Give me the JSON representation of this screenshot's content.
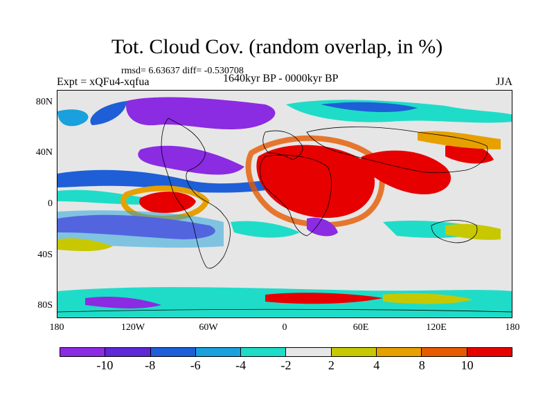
{
  "title": "Tot. Cloud Cov. (random overlap, in %)",
  "stats": "rmsd= 6.63637 diff= -0.530708",
  "expt": "Expt = xQFu4-xqfua",
  "period": "1640kyr BP - 0000kyr BP",
  "season": "JJA",
  "map": {
    "lat_labels": [
      "80N",
      "40N",
      "0",
      "40S",
      "80S"
    ],
    "lon_labels": [
      "180",
      "120W",
      "60W",
      "0",
      "60E",
      "120E",
      "180"
    ]
  },
  "colorbar": {
    "labels": [
      "-10",
      "-8",
      "-6",
      "-4",
      "-2",
      "2",
      "4",
      "8",
      "10"
    ],
    "colors": [
      "#8b2be2",
      "#5e28d6",
      "#1e5fd7",
      "#1aa0dc",
      "#1fdcc8",
      "#e6e6e6",
      "#c8c800",
      "#e6a000",
      "#e65a00",
      "#e60000"
    ]
  }
}
